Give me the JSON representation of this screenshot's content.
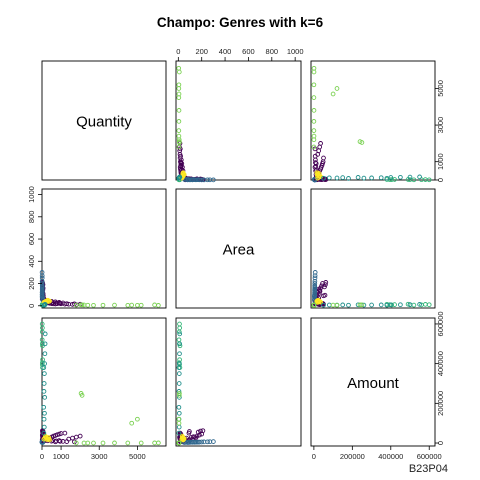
{
  "chart_data": {
    "type": "scatter",
    "title": "Champo: Genres with k=6",
    "caption": "B23P04",
    "variables": [
      "Quantity",
      "Area",
      "Amount"
    ],
    "axes": {
      "Quantity": {
        "range": [
          0,
          6500
        ],
        "ticks": [
          0,
          1000,
          3000,
          5000
        ],
        "left_ticks": [
          "0",
          "1000",
          "3000",
          "5000"
        ],
        "bottom_ticks": [
          "0",
          "1000",
          "3000",
          "5000"
        ]
      },
      "Area": {
        "range": [
          -20,
          1050
        ],
        "ticks": [
          0,
          200,
          400,
          600,
          800,
          1000
        ],
        "left_ticks": [
          "0",
          "200",
          "400",
          "600",
          "800",
          "1000"
        ],
        "bottom_ticks": [
          "0",
          "200",
          "400",
          "600",
          "800",
          "1000"
        ]
      },
      "Amount": {
        "range": [
          -15000,
          630000
        ],
        "ticks": [
          0,
          200000,
          400000,
          600000
        ],
        "left_ticks": [
          "0",
          "200000",
          "400000",
          "600000"
        ],
        "bottom_ticks": [
          "0",
          "200000",
          "400000",
          "600000"
        ]
      }
    },
    "grid": false,
    "legend": "none",
    "cluster_colors": [
      "#440154",
      "#31688E",
      "#35B779",
      "#FDE725",
      "#21908C",
      "#7AD151"
    ],
    "series": [
      {
        "cluster": 1,
        "color": "#440154",
        "points": [
          [
            10,
            60,
            15000
          ],
          [
            30,
            80,
            12000
          ],
          [
            50,
            100,
            16000
          ],
          [
            20,
            120,
            20000
          ],
          [
            40,
            140,
            30000
          ],
          [
            60,
            160,
            35000
          ],
          [
            15,
            180,
            40000
          ],
          [
            35,
            200,
            45000
          ],
          [
            70,
            90,
            50000
          ],
          [
            80,
            70,
            25000
          ],
          [
            100,
            40,
            10000
          ],
          [
            150,
            30,
            12000
          ],
          [
            200,
            35,
            15000
          ],
          [
            250,
            25,
            18000
          ],
          [
            300,
            30,
            20000
          ],
          [
            350,
            28,
            22000
          ],
          [
            400,
            22,
            25000
          ],
          [
            500,
            20,
            30000
          ],
          [
            600,
            18,
            35000
          ],
          [
            700,
            16,
            38000
          ],
          [
            800,
            20,
            42000
          ],
          [
            900,
            22,
            45000
          ],
          [
            1000,
            18,
            48000
          ],
          [
            1200,
            15,
            50000
          ],
          [
            1400,
            14,
            20000
          ],
          [
            1600,
            12,
            25000
          ],
          [
            1800,
            10,
            30000
          ],
          [
            2000,
            14,
            35000
          ],
          [
            1100,
            25,
            8000
          ],
          [
            900,
            30,
            12000
          ],
          [
            700,
            35,
            6000
          ],
          [
            500,
            40,
            9000
          ],
          [
            300,
            45,
            11000
          ],
          [
            120,
            50,
            14000
          ],
          [
            60,
            110,
            28000
          ],
          [
            25,
            130,
            32000
          ],
          [
            45,
            150,
            26000
          ],
          [
            90,
            60,
            18000
          ],
          [
            140,
            55,
            21000
          ],
          [
            180,
            48,
            24000
          ],
          [
            240,
            42,
            27000
          ],
          [
            320,
            38,
            19000
          ],
          [
            420,
            33,
            16000
          ],
          [
            560,
            29,
            13000
          ],
          [
            750,
            24,
            10000
          ],
          [
            950,
            21,
            8000
          ],
          [
            1300,
            19,
            7000
          ],
          [
            1700,
            17,
            6000
          ],
          [
            30,
            170,
            55000
          ],
          [
            55,
            190,
            60000
          ],
          [
            20,
            210,
            62000
          ],
          [
            40,
            95,
            58000
          ]
        ]
      },
      {
        "cluster": 2,
        "color": "#31688E",
        "points": [
          [
            5,
            100,
            3000
          ],
          [
            10,
            150,
            4000
          ],
          [
            8,
            200,
            5000
          ],
          [
            12,
            250,
            6000
          ],
          [
            6,
            300,
            7000
          ],
          [
            4,
            120,
            3500
          ],
          [
            9,
            180,
            4500
          ],
          [
            7,
            220,
            5500
          ],
          [
            11,
            270,
            6500
          ],
          [
            3,
            80,
            2500
          ],
          [
            15,
            90,
            3000
          ],
          [
            20,
            110,
            4000
          ],
          [
            25,
            130,
            5000
          ],
          [
            18,
            160,
            4200
          ],
          [
            14,
            140,
            3800
          ],
          [
            22,
            170,
            4800
          ],
          [
            30,
            60,
            3200
          ],
          [
            40,
            50,
            2800
          ],
          [
            35,
            70,
            3600
          ],
          [
            28,
            85,
            3400
          ]
        ]
      },
      {
        "cluster": 3,
        "color": "#35B779",
        "points": [
          [
            10,
            10,
            600000
          ],
          [
            20,
            12,
            580000
          ],
          [
            15,
            8,
            560000
          ],
          [
            12,
            6,
            520000
          ],
          [
            18,
            9,
            500000
          ],
          [
            25,
            14,
            490000
          ],
          [
            30,
            11,
            420000
          ],
          [
            22,
            7,
            405000
          ],
          [
            16,
            10,
            395000
          ],
          [
            28,
            13,
            380000
          ]
        ]
      },
      {
        "cluster": 4,
        "color": "#FDE725",
        "points": [
          [
            100,
            30,
            20000
          ],
          [
            150,
            35,
            25000
          ],
          [
            200,
            40,
            30000
          ],
          [
            250,
            45,
            18000
          ],
          [
            300,
            50,
            22000
          ],
          [
            350,
            38,
            28000
          ],
          [
            400,
            42,
            15000
          ],
          [
            180,
            33,
            35000
          ],
          [
            220,
            36,
            26000
          ],
          [
            280,
            44,
            24000
          ],
          [
            320,
            39,
            19000
          ],
          [
            380,
            41,
            21000
          ]
        ]
      },
      {
        "cluster": 5,
        "color": "#21908C",
        "points": [
          [
            100,
            5,
            50000
          ],
          [
            120,
            7,
            80000
          ],
          [
            110,
            6,
            120000
          ],
          [
            130,
            8,
            150000
          ],
          [
            90,
            5,
            180000
          ],
          [
            140,
            9,
            230000
          ],
          [
            105,
            6,
            260000
          ],
          [
            115,
            7,
            300000
          ],
          [
            125,
            8,
            350000
          ],
          [
            95,
            5,
            380000
          ],
          [
            135,
            9,
            400000
          ],
          [
            150,
            10,
            450000
          ],
          [
            160,
            11,
            500000
          ],
          [
            170,
            12,
            550000
          ]
        ]
      },
      {
        "cluster": 6,
        "color": "#7AD151",
        "points": [
          [
            5200,
            5,
            300
          ],
          [
            3800,
            6,
            400
          ],
          [
            2700,
            4,
            200
          ],
          [
            2400,
            5,
            350
          ],
          [
            2200,
            7,
            250
          ],
          [
            6100,
            3,
            500
          ],
          [
            5900,
            8,
            450
          ],
          [
            4500,
            4,
            150
          ],
          [
            3200,
            5,
            300
          ],
          [
            1800,
            6,
            200
          ],
          [
            2050,
            9,
            250000
          ],
          [
            2100,
            8,
            240000
          ],
          [
            5000,
            4,
            120000
          ],
          [
            4700,
            6,
            100000
          ]
        ]
      }
    ]
  }
}
